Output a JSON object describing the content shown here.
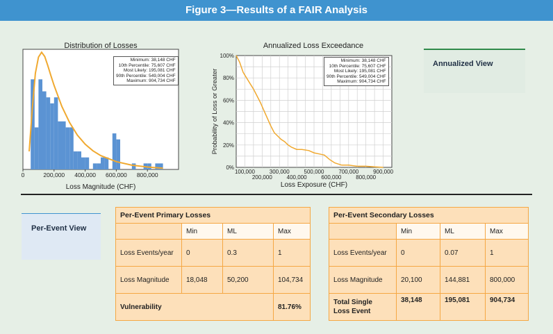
{
  "header": {
    "title": "Figure 3—Results of a FAIR Analysis"
  },
  "stats_legend": [
    "Minimum: 38,148 CHF",
    "10th Percentile: 75,607 CHF",
    "Most Likely: 195,081 CHF",
    "90th Percentile: 549,004 CHF",
    "Maximum: 904,734 CHF"
  ],
  "cards": {
    "annualized": "Annualized View",
    "per_event": "Per-Event View"
  },
  "chart_data": [
    {
      "type": "bar",
      "title": "Distribution of Losses",
      "xlabel": "Loss Magnitude (CHF)",
      "ylabel": "",
      "xlim": [
        0,
        1000000
      ],
      "xticks": [
        "0",
        "200,000",
        "400,000",
        "600,000",
        "800,000"
      ],
      "xtick_values": [
        0,
        200000,
        400000,
        600000,
        800000
      ],
      "bin_width": 25000,
      "bin_starts": [
        50000,
        75000,
        100000,
        125000,
        150000,
        175000,
        200000,
        225000,
        250000,
        275000,
        300000,
        325000,
        350000,
        375000,
        400000,
        425000,
        450000,
        475000,
        500000,
        525000,
        550000,
        575000,
        600000,
        625000,
        650000,
        675000,
        700000,
        725000,
        750000,
        775000,
        800000,
        825000,
        850000,
        875000
      ],
      "values": [
        15,
        7,
        15,
        13,
        12,
        11,
        12,
        8,
        8,
        7,
        7,
        3,
        3,
        2,
        2,
        0,
        1,
        1,
        2,
        2,
        0,
        6,
        5,
        0,
        0,
        0,
        1,
        0,
        0,
        1,
        1,
        0,
        1,
        1
      ],
      "ylim": [
        0,
        20
      ],
      "fit_curve": {
        "name": "fit",
        "x": [
          40000,
          60000,
          80000,
          100000,
          120000,
          140000,
          160000,
          180000,
          200000,
          250000,
          300000,
          350000,
          400000,
          450000,
          500000,
          600000,
          700000,
          800000,
          900000
        ],
        "y": [
          3,
          10,
          16,
          18.7,
          19.5,
          18.8,
          17.3,
          15.6,
          14.0,
          10.5,
          7.8,
          5.7,
          4.2,
          3.1,
          2.3,
          1.3,
          0.7,
          0.4,
          0.2
        ]
      },
      "grid": false,
      "legend": "top-right"
    },
    {
      "type": "line",
      "title": "Annualized Loss Exceedance",
      "xlabel": "Loss Exposure (CHF)",
      "ylabel": "Probability of Loss or Greater",
      "xlim": [
        50000,
        950000
      ],
      "ylim": [
        0,
        100
      ],
      "xticks_upper": [
        "100,000",
        "300,000",
        "500,000",
        "700,000",
        "900,000"
      ],
      "xticks_upper_values": [
        100000,
        300000,
        500000,
        700000,
        900000
      ],
      "xticks_lower": [
        "200,000",
        "400,000",
        "600,000",
        "800,000"
      ],
      "xticks_lower_values": [
        200000,
        400000,
        600000,
        800000
      ],
      "yticks": [
        "0%",
        "20%",
        "40%",
        "60%",
        "80%",
        "100%"
      ],
      "ytick_values": [
        0,
        20,
        40,
        60,
        80,
        100
      ],
      "x": [
        50000,
        70000,
        90000,
        110000,
        130000,
        150000,
        170000,
        190000,
        210000,
        230000,
        250000,
        270000,
        290000,
        310000,
        330000,
        350000,
        370000,
        400000,
        430000,
        470000,
        500000,
        530000,
        560000,
        590000,
        620000,
        660000,
        700000,
        750000,
        800000,
        850000,
        900000
      ],
      "y": [
        100,
        94,
        85,
        80,
        75,
        70,
        64,
        58,
        51,
        44,
        37,
        31,
        28,
        25,
        23,
        20,
        18,
        16,
        16,
        15,
        13,
        12,
        11,
        7,
        4,
        2,
        2,
        1,
        1,
        0.5,
        0
      ],
      "grid": true,
      "legend": "top-right"
    }
  ],
  "primary": {
    "title": "Per-Event Primary Losses",
    "cols": [
      "Min",
      "ML",
      "Max"
    ],
    "rows": [
      {
        "label": "Loss Events/year",
        "min": "0",
        "ml": "0.3",
        "max": "1"
      },
      {
        "label": "Loss Magnitude",
        "min": "18,048",
        "ml": "50,200",
        "max": "104,734"
      }
    ],
    "vulnerability_label": "Vulnerability",
    "vulnerability_value": "81.76%"
  },
  "secondary": {
    "title": "Per-Event Secondary Losses",
    "cols": [
      "Min",
      "ML",
      "Max"
    ],
    "rows": [
      {
        "label": "Loss Events/year",
        "min": "0",
        "ml": "0.07",
        "max": "1"
      },
      {
        "label": "Loss Magnitude",
        "min": "20,100",
        "ml": "144,881",
        "max": "800,000"
      }
    ],
    "total_label_1": "Total Single",
    "total_label_2": "Loss Event",
    "total_min": "38,148",
    "total_ml": "195,081",
    "total_max": "904,734"
  }
}
